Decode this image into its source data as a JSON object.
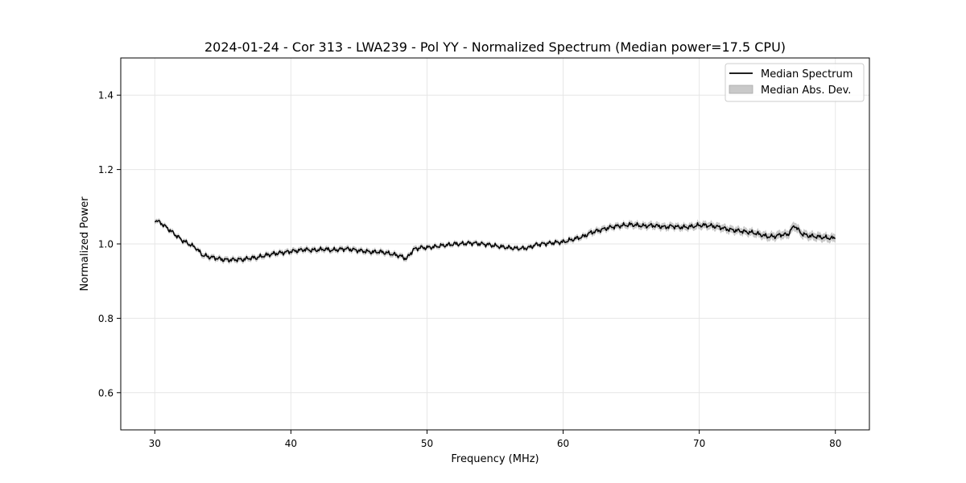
{
  "chart_data": {
    "type": "line",
    "title": "2024-01-24 - Cor 313 - LWA239 - Pol YY - Normalized Spectrum (Median power=17.5 CPU)",
    "xlabel": "Frequency (MHz)",
    "ylabel": "Normalized Power",
    "xlim": [
      27.5,
      82.5
    ],
    "ylim": [
      0.5,
      1.5
    ],
    "xticks": [
      30,
      40,
      50,
      60,
      70,
      80
    ],
    "yticks": [
      0.6,
      0.8,
      1.0,
      1.2,
      1.4
    ],
    "xtick_labels": [
      "30",
      "40",
      "50",
      "60",
      "70",
      "80"
    ],
    "ytick_labels": [
      "0.6",
      "0.8",
      "1.0",
      "1.2",
      "1.4"
    ],
    "grid": true,
    "legend_position": "top-right",
    "series": [
      {
        "name": "Median Spectrum",
        "color": "#000000",
        "x": [
          30.0,
          30.5,
          31.0,
          31.5,
          32.0,
          32.5,
          33.0,
          33.5,
          34.0,
          34.5,
          35.0,
          35.5,
          36.0,
          36.5,
          37.0,
          37.5,
          38.0,
          38.5,
          39.0,
          39.5,
          40.0,
          40.5,
          41.0,
          41.5,
          42.0,
          42.5,
          43.0,
          43.5,
          44.0,
          44.5,
          45.0,
          45.5,
          46.0,
          46.5,
          47.0,
          47.5,
          48.0,
          48.5,
          49.0,
          49.5,
          50.0,
          50.5,
          51.0,
          51.5,
          52.0,
          52.5,
          53.0,
          53.5,
          54.0,
          54.5,
          55.0,
          55.5,
          56.0,
          56.5,
          57.0,
          57.5,
          58.0,
          58.5,
          59.0,
          59.5,
          60.0,
          60.5,
          61.0,
          61.5,
          62.0,
          62.5,
          63.0,
          63.5,
          64.0,
          64.5,
          65.0,
          65.5,
          66.0,
          66.5,
          67.0,
          67.5,
          68.0,
          68.5,
          69.0,
          69.5,
          70.0,
          70.5,
          71.0,
          71.5,
          72.0,
          72.5,
          73.0,
          73.5,
          74.0,
          74.5,
          75.0,
          75.5,
          76.0,
          76.5,
          77.0,
          77.5,
          78.0,
          78.5,
          79.0,
          79.5,
          80.0
        ],
        "values": [
          1.065,
          1.055,
          1.04,
          1.025,
          1.01,
          1.0,
          0.99,
          0.97,
          0.965,
          0.962,
          0.958,
          0.957,
          0.958,
          0.958,
          0.962,
          0.963,
          0.968,
          0.972,
          0.975,
          0.977,
          0.98,
          0.982,
          0.985,
          0.983,
          0.984,
          0.986,
          0.983,
          0.985,
          0.987,
          0.985,
          0.982,
          0.98,
          0.978,
          0.979,
          0.976,
          0.972,
          0.968,
          0.96,
          0.985,
          0.99,
          0.99,
          0.992,
          0.995,
          0.997,
          1.0,
          1.0,
          1.002,
          1.002,
          1.0,
          0.998,
          0.995,
          0.992,
          0.99,
          0.988,
          0.988,
          0.99,
          0.998,
          1.0,
          1.002,
          1.004,
          1.005,
          1.01,
          1.015,
          1.02,
          1.03,
          1.035,
          1.04,
          1.045,
          1.048,
          1.05,
          1.052,
          1.05,
          1.048,
          1.05,
          1.048,
          1.045,
          1.048,
          1.045,
          1.045,
          1.047,
          1.05,
          1.05,
          1.048,
          1.045,
          1.04,
          1.037,
          1.035,
          1.032,
          1.03,
          1.025,
          1.02,
          1.02,
          1.025,
          1.025,
          1.05,
          1.028,
          1.022,
          1.02,
          1.018,
          1.016,
          1.015
        ],
        "mad": [
          0.006,
          0.006,
          0.006,
          0.006,
          0.006,
          0.006,
          0.006,
          0.007,
          0.007,
          0.007,
          0.007,
          0.007,
          0.007,
          0.007,
          0.007,
          0.007,
          0.007,
          0.007,
          0.007,
          0.007,
          0.007,
          0.007,
          0.007,
          0.007,
          0.007,
          0.007,
          0.007,
          0.007,
          0.007,
          0.007,
          0.007,
          0.007,
          0.007,
          0.007,
          0.007,
          0.007,
          0.007,
          0.007,
          0.007,
          0.007,
          0.006,
          0.006,
          0.006,
          0.006,
          0.006,
          0.006,
          0.006,
          0.006,
          0.006,
          0.006,
          0.006,
          0.006,
          0.006,
          0.006,
          0.006,
          0.006,
          0.006,
          0.006,
          0.006,
          0.006,
          0.007,
          0.007,
          0.007,
          0.007,
          0.008,
          0.008,
          0.008,
          0.008,
          0.008,
          0.008,
          0.009,
          0.009,
          0.009,
          0.009,
          0.009,
          0.009,
          0.009,
          0.009,
          0.009,
          0.009,
          0.01,
          0.01,
          0.01,
          0.01,
          0.01,
          0.01,
          0.01,
          0.01,
          0.01,
          0.01,
          0.011,
          0.011,
          0.011,
          0.011,
          0.012,
          0.011,
          0.011,
          0.011,
          0.011,
          0.011,
          0.011
        ]
      }
    ],
    "legend": [
      {
        "label": "Median Spectrum",
        "kind": "line",
        "color": "#000000"
      },
      {
        "label": "Median Abs. Dev.",
        "kind": "band",
        "color": "#bfbfbf"
      }
    ]
  }
}
